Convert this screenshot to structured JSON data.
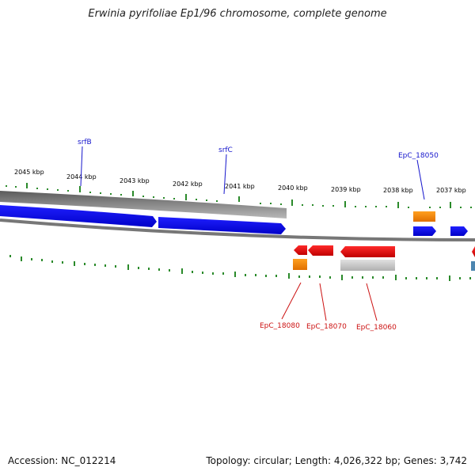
{
  "title": "Erwinia pyrifoliae Ep1/96 chromosome, complete genome",
  "footer": {
    "accession": "Accession: NC_012214",
    "summary": "Topology: circular; Length: 4,026,322 bp; Genes: 3,742"
  },
  "scale_labels": [
    "2045 kbp",
    "2044 kbp",
    "2043 kbp",
    "2042 kbp",
    "2041 kbp",
    "2040 kbp",
    "2039 kbp",
    "2038 kbp",
    "2037 kbp"
  ],
  "gene_labels": {
    "srfB": "srfB",
    "srfC": "srfC",
    "epc18050": "EpC_18050",
    "epc18080": "EpC_18080",
    "epc18070": "EpC_18070",
    "epc18060": "EpC_18060"
  },
  "colors": {
    "forward_gene": "#1010e0",
    "reverse_gene": "#e01010",
    "operon_orange": "#f08a00",
    "backbone": "#777777",
    "tick": "#2a8a2a",
    "blue_label": "#1515cc",
    "red_label": "#cc1111"
  }
}
